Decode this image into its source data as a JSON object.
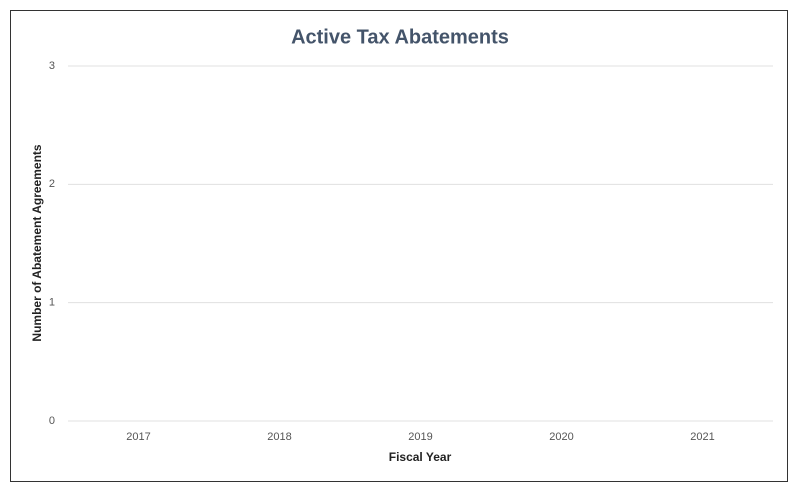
{
  "chart_data": {
    "type": "bar",
    "title": "Active Tax Abatements",
    "x_label": "Fiscal Year",
    "y_label": "Number of Abatement Agreements",
    "categories": [
      "2017",
      "2018",
      "2019",
      "2020",
      "2021"
    ],
    "values": [
      0,
      0,
      0,
      0,
      0
    ],
    "color": "#4472c4",
    "ylim": [
      0,
      3
    ],
    "yticks": [
      0,
      1,
      2,
      3
    ],
    "grid": true
  }
}
